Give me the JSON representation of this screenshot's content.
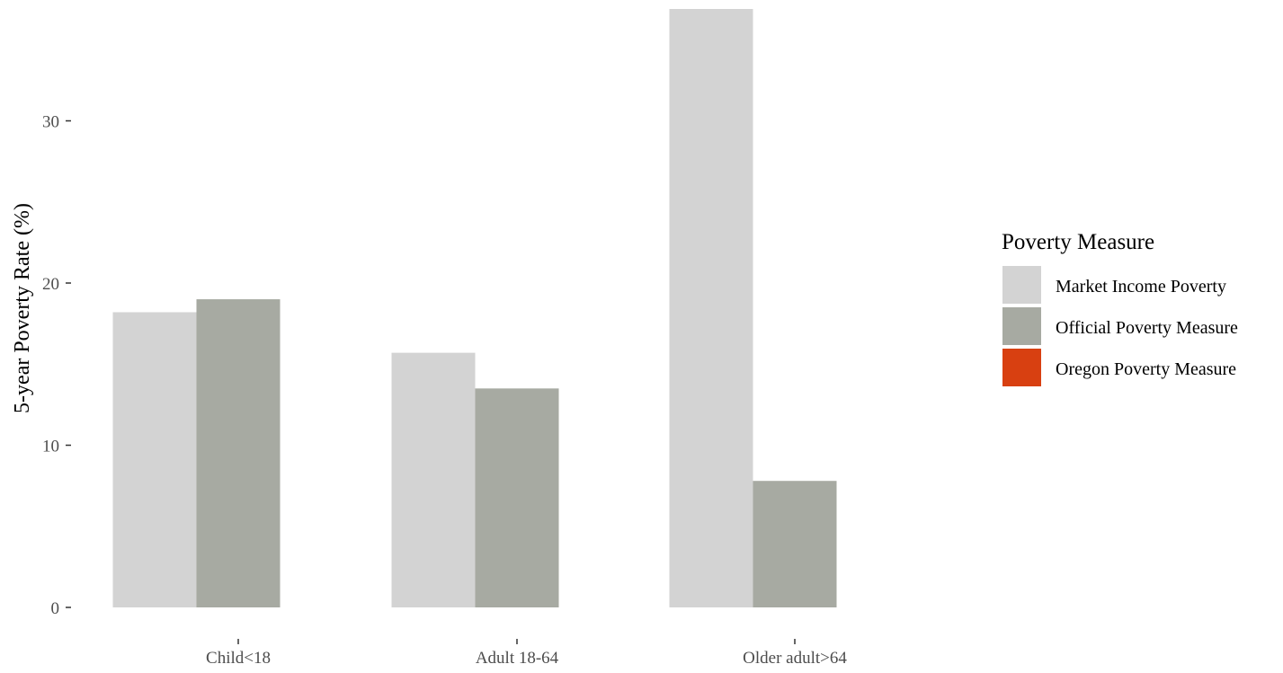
{
  "chart_data": {
    "type": "bar",
    "categories": [
      "Child<18",
      "Adult 18-64",
      "Older adult>64"
    ],
    "series": [
      {
        "name": "Market Income Poverty",
        "color": "#d3d3d3",
        "values": [
          18.2,
          15.7,
          37.0
        ]
      },
      {
        "name": "Official Poverty Measure",
        "color": "#a7aaa2",
        "values": [
          19.0,
          13.5,
          7.8
        ]
      },
      {
        "name": "Oregon Poverty Measure",
        "color": "#d84011",
        "values": [
          null,
          null,
          null
        ]
      }
    ],
    "title": "",
    "xlabel": "",
    "ylabel": "5-year Poverty Rate (%)",
    "ylim": [
      0,
      37
    ],
    "yticks": [
      0,
      10,
      20,
      30
    ],
    "grid": false,
    "legend": {
      "title": "Poverty Measure",
      "position": "right"
    }
  }
}
